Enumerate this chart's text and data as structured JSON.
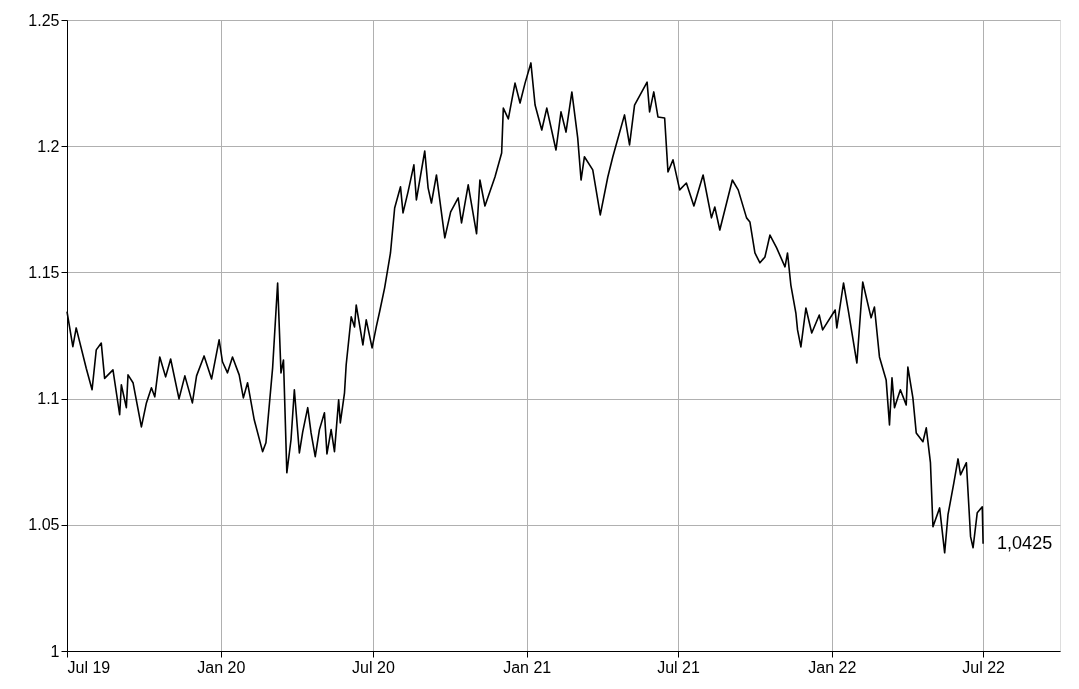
{
  "chart_data": {
    "type": "line",
    "x": [
      "2019-07-01",
      "2019-07-08",
      "2019-07-12",
      "2019-07-24",
      "2019-07-31",
      "2019-08-05",
      "2019-08-11",
      "2019-08-15",
      "2019-08-25",
      "2019-09-02",
      "2019-09-04",
      "2019-09-10",
      "2019-09-12",
      "2019-09-18",
      "2019-09-28",
      "2019-10-04",
      "2019-10-10",
      "2019-10-14",
      "2019-10-20",
      "2019-10-27",
      "2019-11-02",
      "2019-11-12",
      "2019-11-19",
      "2019-11-28",
      "2019-12-03",
      "2019-12-12",
      "2019-12-21",
      "2019-12-30",
      "2020-01-03",
      "2020-01-09",
      "2020-01-15",
      "2020-01-23",
      "2020-01-28",
      "2020-02-02",
      "2020-02-10",
      "2020-02-20",
      "2020-02-24",
      "2020-03-03",
      "2020-03-09",
      "2020-03-13",
      "2020-03-16",
      "2020-03-20",
      "2020-03-25",
      "2020-03-29",
      "2020-04-04",
      "2020-04-08",
      "2020-04-14",
      "2020-04-18",
      "2020-04-23",
      "2020-04-28",
      "2020-05-04",
      "2020-05-07",
      "2020-05-12",
      "2020-05-16",
      "2020-05-21",
      "2020-05-23",
      "2020-05-28",
      "2020-05-30",
      "2020-06-05",
      "2020-06-09",
      "2020-06-11",
      "2020-06-19",
      "2020-06-23",
      "2020-06-30",
      "2020-07-05",
      "2020-07-09",
      "2020-07-15",
      "2020-07-22",
      "2020-07-27",
      "2020-08-03",
      "2020-08-06",
      "2020-08-12",
      "2020-08-19",
      "2020-08-22",
      "2020-09-01",
      "2020-09-05",
      "2020-09-09",
      "2020-09-15",
      "2020-09-25",
      "2020-10-02",
      "2020-10-11",
      "2020-10-15",
      "2020-10-23",
      "2020-11-02",
      "2020-11-06",
      "2020-11-12",
      "2020-11-24",
      "2020-12-02",
      "2020-12-04",
      "2020-12-10",
      "2020-12-18",
      "2020-12-24",
      "2020-12-30",
      "2021-01-06",
      "2021-01-11",
      "2021-01-19",
      "2021-01-25",
      "2021-02-05",
      "2021-02-11",
      "2021-02-17",
      "2021-02-24",
      "2021-03-03",
      "2021-03-07",
      "2021-03-11",
      "2021-03-21",
      "2021-03-30",
      "2021-04-08",
      "2021-04-14",
      "2021-04-22",
      "2021-04-28",
      "2021-05-04",
      "2021-05-10",
      "2021-05-18",
      "2021-05-25",
      "2021-05-28",
      "2021-06-02",
      "2021-06-07",
      "2021-06-15",
      "2021-06-19",
      "2021-06-25",
      "2021-07-03",
      "2021-07-11",
      "2021-07-20",
      "2021-07-31",
      "2021-08-10",
      "2021-08-14",
      "2021-08-20",
      "2021-09-04",
      "2021-09-11",
      "2021-09-21",
      "2021-09-25",
      "2021-10-01",
      "2021-10-07",
      "2021-10-13",
      "2021-10-19",
      "2021-10-27",
      "2021-11-06",
      "2021-11-09",
      "2021-11-13",
      "2021-11-19",
      "2021-11-21",
      "2021-11-25",
      "2021-12-01",
      "2021-12-08",
      "2021-12-17",
      "2021-12-21",
      "2022-01-05",
      "2022-01-07",
      "2022-01-15",
      "2022-01-21",
      "2022-01-31",
      "2022-02-07",
      "2022-02-17",
      "2022-02-21",
      "2022-02-27",
      "2022-03-07",
      "2022-03-11",
      "2022-03-14",
      "2022-03-17",
      "2022-03-24",
      "2022-03-31",
      "2022-04-02",
      "2022-04-08",
      "2022-04-12",
      "2022-04-20",
      "2022-04-24",
      "2022-04-29",
      "2022-05-02",
      "2022-05-10",
      "2022-05-16",
      "2022-05-20",
      "2022-05-27",
      "2022-06-01",
      "2022-06-04",
      "2022-06-11",
      "2022-06-16",
      "2022-06-19",
      "2022-06-24",
      "2022-06-30",
      "2022-07-01"
    ],
    "series": [
      {
        "color": "#000000",
        "values": [
          1.1345,
          1.1206,
          1.128,
          1.112,
          1.1035,
          1.1193,
          1.122,
          1.108,
          1.1114,
          1.0936,
          1.1055,
          1.0964,
          1.1094,
          1.1063,
          1.0888,
          1.0983,
          1.1043,
          1.1007,
          1.1165,
          1.1086,
          1.1157,
          1.0999,
          1.109,
          1.0983,
          1.109,
          1.1169,
          1.1078,
          1.1233,
          1.1146,
          1.1102,
          1.1165,
          1.1094,
          1.1003,
          1.1063,
          1.0916,
          1.079,
          1.0825,
          1.1122,
          1.1458,
          1.1102,
          1.1153,
          1.0706,
          1.0837,
          1.1035,
          1.0785,
          1.0868,
          1.0964,
          1.0864,
          1.077,
          1.0877,
          1.0944,
          1.0781,
          1.0877,
          1.079,
          1.0995,
          1.0904,
          1.1023,
          1.1134,
          1.1324,
          1.1284,
          1.1371,
          1.1213,
          1.1312,
          1.1201,
          1.1284,
          1.1344,
          1.1439,
          1.1577,
          1.1755,
          1.1839,
          1.1736,
          1.1819,
          1.1926,
          1.1787,
          1.1981,
          1.1835,
          1.1775,
          1.1886,
          1.1637,
          1.174,
          1.1795,
          1.1696,
          1.1847,
          1.1653,
          1.1866,
          1.1763,
          1.1878,
          1.1973,
          1.2151,
          1.2108,
          1.225,
          1.2171,
          1.225,
          1.233,
          1.2163,
          1.2064,
          1.2151,
          1.1985,
          1.2136,
          1.2056,
          1.2215,
          1.2033,
          1.1866,
          1.1958,
          1.1906,
          1.1728,
          1.1878,
          1.1958,
          1.2053,
          1.2124,
          1.2005,
          1.2163,
          1.2211,
          1.2254,
          1.2136,
          1.2215,
          1.2116,
          1.2112,
          1.1898,
          1.1946,
          1.1827,
          1.1854,
          1.1763,
          1.1886,
          1.1716,
          1.1759,
          1.1668,
          1.1866,
          1.1827,
          1.1716,
          1.17,
          1.1577,
          1.1538,
          1.1561,
          1.1648,
          1.1597,
          1.1522,
          1.1577,
          1.145,
          1.1339,
          1.1272,
          1.1205,
          1.1359,
          1.126,
          1.1331,
          1.1272,
          1.1351,
          1.128,
          1.1458,
          1.1344,
          1.1141,
          1.1462,
          1.132,
          1.1363,
          1.1165,
          1.1074,
          1.0896,
          1.1082,
          1.0964,
          1.1035,
          1.0975,
          1.1125,
          1.1003,
          1.0864,
          1.0829,
          1.0884,
          1.0746,
          1.0492,
          1.0567,
          1.0389,
          1.054,
          1.0666,
          1.0761,
          1.0698,
          1.0746,
          1.0453,
          1.0409,
          1.0548,
          1.0571,
          1.0425
        ]
      }
    ],
    "xlim": [
      "2019-07-01",
      "2022-10-01"
    ],
    "xticks": [
      {
        "value": "2019-07-01",
        "label": "Jul 19"
      },
      {
        "value": "2020-01-01",
        "label": "Jan 20"
      },
      {
        "value": "2020-07-01",
        "label": "Jul 20"
      },
      {
        "value": "2021-01-01",
        "label": "Jan 21"
      },
      {
        "value": "2021-07-01",
        "label": "Jul 21"
      },
      {
        "value": "2022-01-01",
        "label": "Jan 22"
      },
      {
        "value": "2022-07-01",
        "label": "Jul 22"
      }
    ],
    "ylim": [
      1,
      1.25
    ],
    "yticks": [
      1,
      1.05,
      1.1,
      1.15,
      1.2,
      1.25
    ],
    "grid": true,
    "annotations": [
      {
        "text": "1,0425",
        "x": "2022-07-01",
        "y": 1.0425
      }
    ]
  }
}
